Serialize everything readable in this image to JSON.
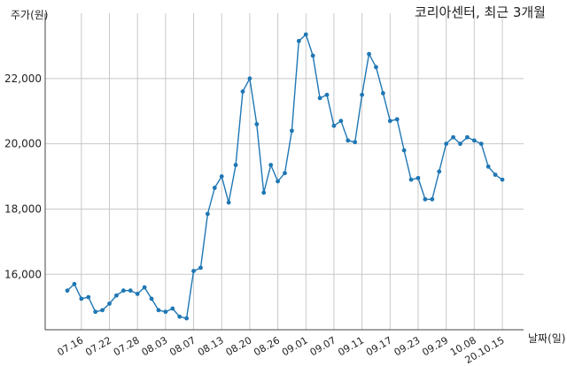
{
  "chart_data": {
    "type": "line",
    "title": "코리아센터, 최근 3개월",
    "xlabel": "날짜(일)",
    "ylabel": "주가(원)",
    "x_tick_labels": [
      "07.16",
      "07.22",
      "07.28",
      "08.03",
      "08.07",
      "08.13",
      "08.20",
      "08.26",
      "09.01",
      "09.07",
      "09.11",
      "09.17",
      "09.23",
      "09.29",
      "10.08",
      "20.10.15"
    ],
    "x_tick_indices": [
      2,
      6,
      10,
      14,
      18,
      22,
      26,
      30,
      34,
      38,
      42,
      46,
      50,
      54,
      58,
      62
    ],
    "y_ticks": [
      16000,
      18000,
      20000,
      22000
    ],
    "y_tick_labels": [
      "16,000",
      "18,000",
      "20,000",
      "22,000"
    ],
    "ylim": [
      14300,
      24000
    ],
    "grid": true,
    "series": [
      {
        "color": "#1f77b4",
        "values": [
          15500,
          15700,
          15250,
          15300,
          14850,
          14900,
          15100,
          15350,
          15500,
          15500,
          15400,
          15600,
          15250,
          14900,
          14850,
          14950,
          14700,
          14650,
          16100,
          16200,
          17850,
          18650,
          19000,
          18200,
          19350,
          21600,
          22000,
          20600,
          18500,
          19350,
          18850,
          19100,
          20400,
          23150,
          23350,
          22700,
          21400,
          21500,
          20550,
          20700,
          20100,
          20050,
          21500,
          22750,
          22350,
          21550,
          20700,
          20750,
          19800,
          18900,
          18950,
          18300,
          18300,
          19150,
          20000,
          20200,
          20000,
          20200,
          20100,
          20000,
          19300,
          19050,
          18900
        ]
      }
    ]
  }
}
